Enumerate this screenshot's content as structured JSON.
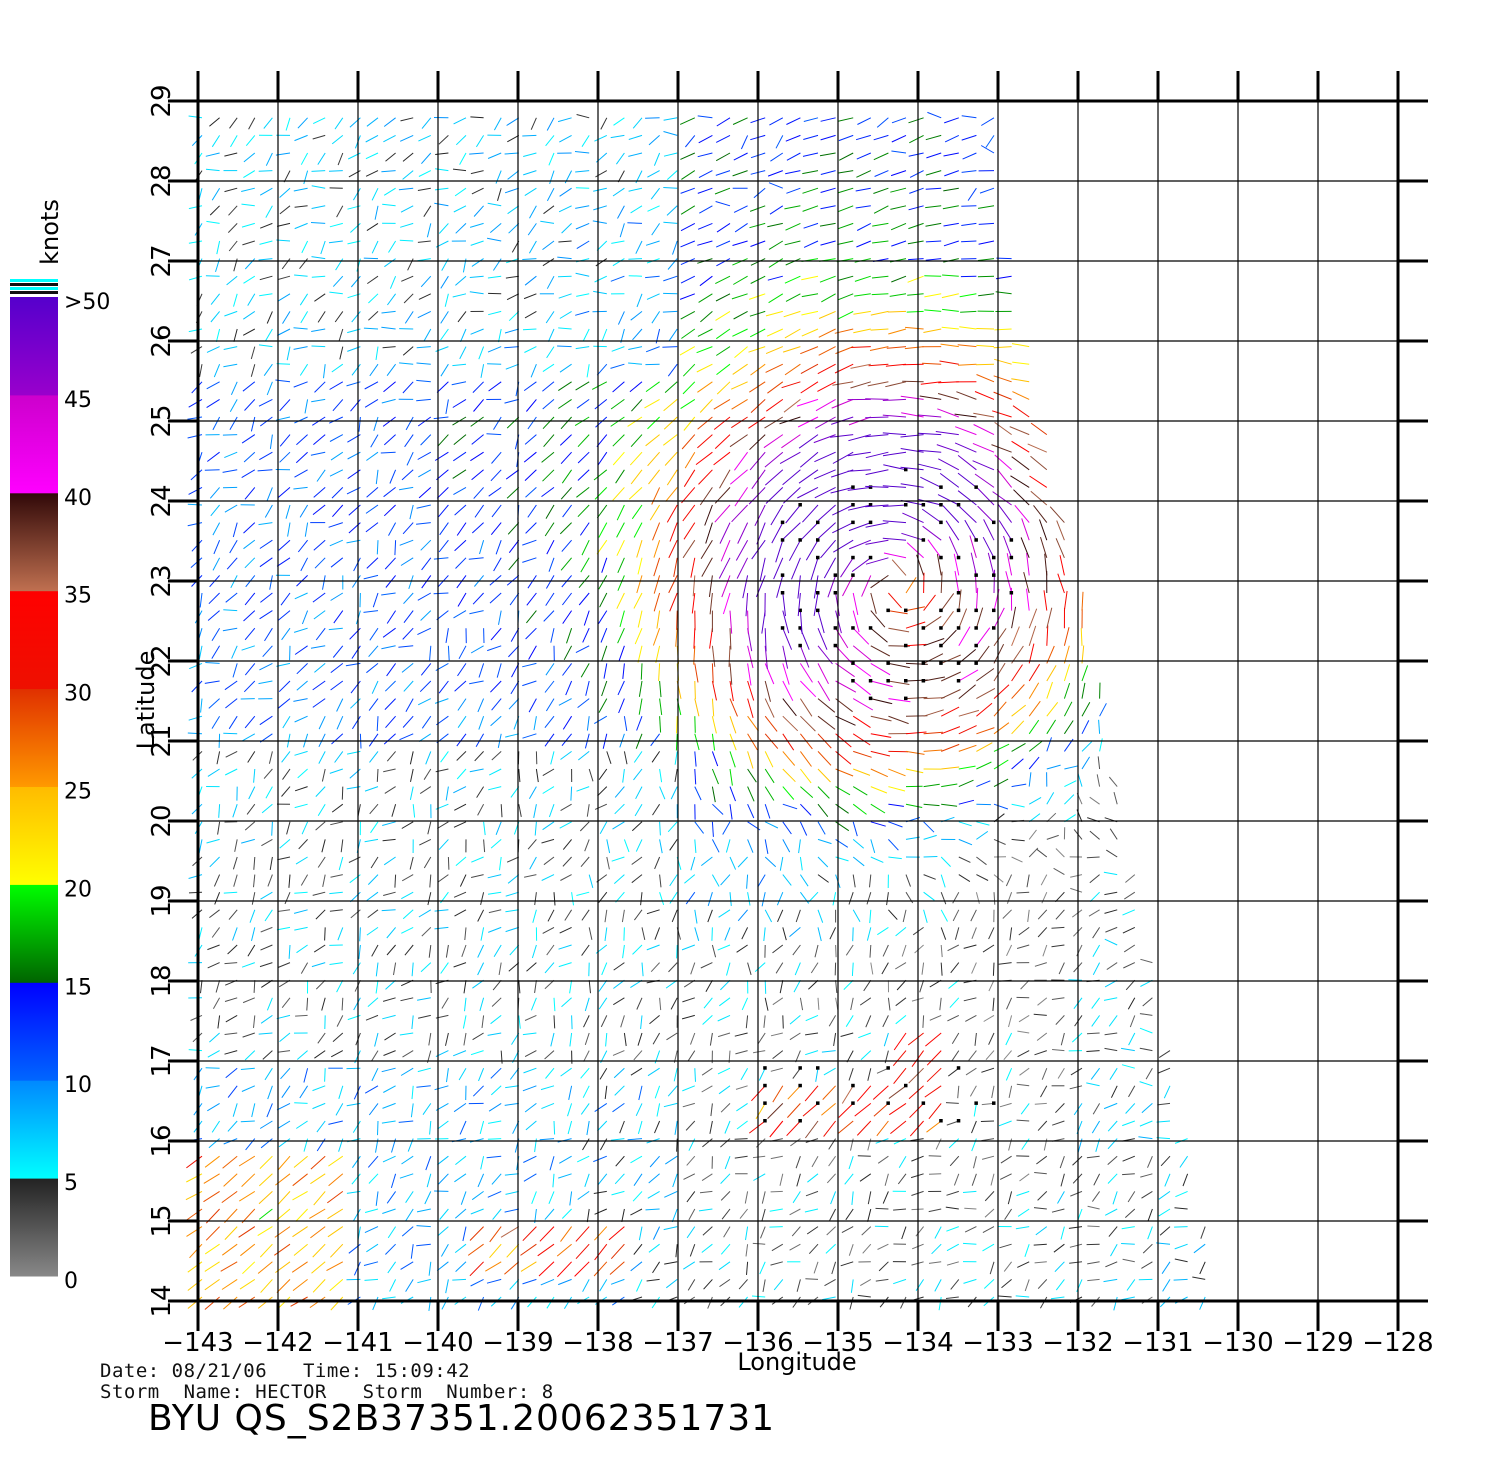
{
  "chart_data": {
    "type": "wind-vector-map",
    "xlabel": "Longitude",
    "ylabel": "Latitude",
    "xlim": [
      -143,
      -128
    ],
    "ylim": [
      14,
      29
    ],
    "x_ticks": [
      -143,
      -142,
      -141,
      -140,
      -139,
      -138,
      -137,
      -136,
      -135,
      -134,
      -133,
      -132,
      -131,
      -130,
      -129,
      -128
    ],
    "y_ticks": [
      14,
      15,
      16,
      17,
      18,
      19,
      20,
      21,
      22,
      23,
      24,
      25,
      26,
      27,
      28,
      29
    ],
    "x_tick_labels": [
      "−143",
      "−142",
      "−141",
      "−140",
      "−139",
      "−138",
      "−137",
      "−136",
      "−135",
      "−134",
      "−133",
      "−132",
      "−131",
      "−130",
      "−129",
      "−128"
    ],
    "y_tick_labels": [
      "14",
      "15",
      "16",
      "17",
      "18",
      "19",
      "20",
      "21",
      "22",
      "23",
      "24",
      "25",
      "26",
      "27",
      "28",
      "29"
    ],
    "grid": true,
    "swath": {
      "description_points_lon_lat": [
        [
          -143,
          29
        ],
        [
          -133,
          29
        ],
        [
          -130.2,
          14
        ],
        [
          -143,
          14
        ]
      ]
    },
    "colorbar": {
      "title": "knots",
      "labels": [
        ">50",
        "45",
        "40",
        "35",
        "30",
        "25",
        "20",
        "15",
        "10",
        "5",
        "0"
      ],
      "bins": [
        {
          "from": 0,
          "to": 5,
          "colors": [
            "#888888",
            "#222222"
          ]
        },
        {
          "from": 5,
          "to": 10,
          "colors": [
            "#00ffff",
            "#0088ff"
          ]
        },
        {
          "from": 10,
          "to": 15,
          "colors": [
            "#0066ff",
            "#0000ff"
          ]
        },
        {
          "from": 15,
          "to": 20,
          "colors": [
            "#006400",
            "#00ff00"
          ]
        },
        {
          "from": 20,
          "to": 25,
          "colors": [
            "#ffff00",
            "#ffbb00"
          ]
        },
        {
          "from": 25,
          "to": 30,
          "colors": [
            "#ff9900",
            "#e03000"
          ]
        },
        {
          "from": 30,
          "to": 35,
          "colors": [
            "#ee1000",
            "#ff0000"
          ]
        },
        {
          "from": 35,
          "to": 40,
          "colors": [
            "#c07050",
            "#300808"
          ]
        },
        {
          "from": 40,
          "to": 45,
          "colors": [
            "#ff00ff",
            "#cc00cc"
          ]
        },
        {
          "from": 45,
          "to": 50,
          "colors": [
            "#9900cc",
            "#5500cc"
          ]
        }
      ],
      "top_stripes": [
        "#00ffff",
        "#111111",
        "#00ffff",
        "#111111"
      ]
    },
    "storm_center": {
      "lon": -134.3,
      "lat": 23.0
    },
    "rain_flag_color": "#000000"
  },
  "footer": {
    "date_line": "Date: 08/21/06   Time: 15:09:42",
    "storm_line": "Storm  Name: HECTOR   Storm  Number: 8",
    "id": "BYU  QS_S2B37351.20062351731"
  }
}
